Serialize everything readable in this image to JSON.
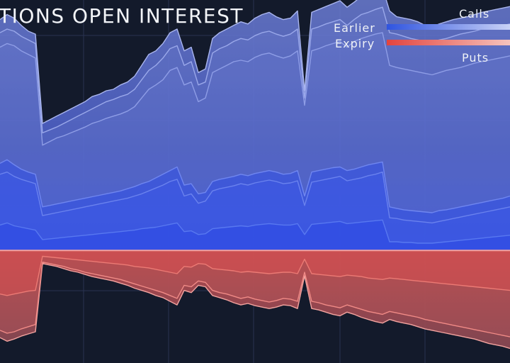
{
  "header": {
    "title": "TIONS OPEN INTEREST"
  },
  "legend": {
    "calls_label": "Calls",
    "puts_label": "Puts",
    "earlier_label": "Earlier",
    "expiry_label": "Expiry",
    "calls_gradient": [
      "#2f54e0",
      "#c9d2f6"
    ],
    "puts_gradient": [
      "#e2443f",
      "#f5c3bd"
    ]
  },
  "chart_data": {
    "type": "area",
    "title": "TIONS OPEN INTEREST",
    "xlabel": "",
    "ylabel": "",
    "grid": true,
    "legend_placement": "top-right",
    "x": [
      0,
      1,
      2,
      3,
      4,
      5,
      6,
      7,
      8,
      9,
      10,
      11,
      12,
      13,
      14,
      15,
      16,
      17,
      18,
      19,
      20,
      21,
      22,
      23,
      24,
      25,
      26,
      27,
      28,
      29,
      30,
      31,
      32,
      33,
      34,
      35,
      36,
      37,
      38,
      39,
      40,
      41,
      42,
      43,
      44,
      45,
      46,
      47,
      48,
      49,
      50,
      51,
      52,
      53,
      54,
      55,
      56,
      57,
      58,
      59,
      60,
      61,
      62,
      63,
      64,
      65,
      66,
      67,
      68,
      69,
      70,
      71,
      72
    ],
    "ylim": [
      -1.55,
      3.45
    ],
    "baseline": 0,
    "series_calls": [
      {
        "values": [
          3.18,
          3.25,
          3.2,
          3.1,
          3.02,
          2.98,
          1.75,
          1.8,
          1.85,
          1.9,
          1.95,
          2.0,
          2.05,
          2.12,
          2.15,
          2.2,
          2.22,
          2.28,
          2.32,
          2.4,
          2.55,
          2.7,
          2.75,
          2.85,
          3.0,
          3.05,
          2.75,
          2.8,
          2.45,
          2.5,
          2.92,
          3.0,
          3.05,
          3.1,
          3.15,
          3.12,
          3.2,
          3.25,
          3.28,
          3.22,
          3.18,
          3.2,
          3.3,
          2.2,
          3.28,
          3.32,
          3.36,
          3.4,
          3.44,
          3.35,
          3.42,
          3.5,
          3.55,
          3.6,
          3.62,
          3.3,
          3.22,
          3.2,
          3.18,
          3.15,
          3.1,
          3.08,
          3.12,
          3.15,
          3.18,
          3.2,
          3.22,
          3.25,
          3.28,
          3.3,
          3.32,
          3.34,
          3.36
        ]
      },
      {
        "values": [
          3.0,
          3.05,
          3.02,
          2.95,
          2.9,
          2.85,
          1.62,
          1.66,
          1.7,
          1.75,
          1.8,
          1.85,
          1.9,
          1.95,
          2.0,
          2.05,
          2.08,
          2.12,
          2.15,
          2.22,
          2.35,
          2.48,
          2.55,
          2.65,
          2.78,
          2.82,
          2.55,
          2.6,
          2.28,
          2.32,
          2.72,
          2.78,
          2.82,
          2.88,
          2.92,
          2.9,
          2.96,
          3.0,
          3.02,
          2.98,
          2.95,
          2.98,
          3.05,
          2.1,
          3.05,
          3.08,
          3.12,
          3.15,
          3.18,
          3.1,
          3.18,
          3.25,
          3.28,
          3.32,
          3.35,
          3.0,
          2.98,
          2.95,
          2.92,
          2.9,
          2.88,
          2.86,
          2.9,
          2.92,
          2.95,
          2.98,
          3.0,
          3.02,
          3.05,
          3.07,
          3.08,
          3.1,
          3.12
        ]
      },
      {
        "values": [
          2.8,
          2.85,
          2.82,
          2.75,
          2.7,
          2.65,
          1.45,
          1.5,
          1.55,
          1.58,
          1.62,
          1.66,
          1.7,
          1.75,
          1.78,
          1.82,
          1.85,
          1.88,
          1.92,
          1.98,
          2.1,
          2.22,
          2.28,
          2.35,
          2.48,
          2.52,
          2.28,
          2.32,
          2.05,
          2.1,
          2.45,
          2.5,
          2.55,
          2.6,
          2.62,
          2.6,
          2.66,
          2.7,
          2.72,
          2.68,
          2.65,
          2.68,
          2.75,
          2.0,
          2.75,
          2.78,
          2.82,
          2.85,
          2.88,
          2.8,
          2.88,
          2.92,
          2.95,
          2.98,
          3.0,
          2.55,
          2.52,
          2.5,
          2.48,
          2.46,
          2.44,
          2.42,
          2.45,
          2.48,
          2.5,
          2.52,
          2.55,
          2.58,
          2.6,
          2.62,
          2.64,
          2.66,
          2.68
        ]
      },
      {
        "values": [
          1.2,
          1.25,
          1.18,
          1.12,
          1.08,
          1.05,
          0.6,
          0.62,
          0.64,
          0.66,
          0.68,
          0.7,
          0.72,
          0.74,
          0.76,
          0.78,
          0.8,
          0.82,
          0.85,
          0.88,
          0.92,
          0.95,
          1.0,
          1.05,
          1.1,
          1.15,
          0.9,
          0.92,
          0.78,
          0.8,
          0.95,
          0.98,
          1.0,
          1.02,
          1.05,
          1.03,
          1.06,
          1.08,
          1.1,
          1.08,
          1.05,
          1.06,
          1.1,
          0.75,
          1.08,
          1.1,
          1.12,
          1.14,
          1.15,
          1.1,
          1.12,
          1.15,
          1.18,
          1.2,
          1.22,
          0.6,
          0.58,
          0.56,
          0.55,
          0.54,
          0.53,
          0.52,
          0.55,
          0.56,
          0.58,
          0.6,
          0.62,
          0.64,
          0.66,
          0.68,
          0.7,
          0.72,
          0.75
        ]
      },
      {
        "values": [
          1.05,
          1.08,
          1.02,
          0.98,
          0.95,
          0.92,
          0.48,
          0.5,
          0.52,
          0.54,
          0.56,
          0.58,
          0.6,
          0.62,
          0.64,
          0.66,
          0.68,
          0.7,
          0.72,
          0.75,
          0.78,
          0.82,
          0.86,
          0.9,
          0.95,
          0.98,
          0.75,
          0.78,
          0.65,
          0.68,
          0.82,
          0.85,
          0.87,
          0.89,
          0.92,
          0.9,
          0.93,
          0.95,
          0.97,
          0.95,
          0.92,
          0.93,
          0.96,
          0.62,
          0.94,
          0.96,
          0.98,
          1.0,
          1.02,
          0.96,
          0.98,
          1.0,
          1.03,
          1.05,
          1.08,
          0.45,
          0.44,
          0.42,
          0.41,
          0.4,
          0.39,
          0.38,
          0.4,
          0.42,
          0.44,
          0.46,
          0.48,
          0.5,
          0.52,
          0.54,
          0.56,
          0.58,
          0.6
        ]
      },
      {
        "values": [
          0.35,
          0.38,
          0.34,
          0.32,
          0.3,
          0.28,
          0.15,
          0.16,
          0.17,
          0.18,
          0.19,
          0.2,
          0.21,
          0.22,
          0.23,
          0.24,
          0.25,
          0.26,
          0.27,
          0.28,
          0.3,
          0.31,
          0.32,
          0.34,
          0.36,
          0.38,
          0.26,
          0.27,
          0.22,
          0.23,
          0.3,
          0.31,
          0.32,
          0.33,
          0.34,
          0.33,
          0.35,
          0.36,
          0.37,
          0.36,
          0.35,
          0.35,
          0.37,
          0.22,
          0.36,
          0.37,
          0.38,
          0.39,
          0.4,
          0.37,
          0.38,
          0.39,
          0.4,
          0.41,
          0.42,
          0.12,
          0.12,
          0.11,
          0.11,
          0.1,
          0.1,
          0.1,
          0.11,
          0.12,
          0.13,
          0.14,
          0.15,
          0.16,
          0.17,
          0.18,
          0.19,
          0.2,
          0.21
        ]
      }
    ],
    "series_puts": [
      {
        "values": [
          -1.2,
          -1.25,
          -1.22,
          -1.18,
          -1.15,
          -1.12,
          -0.18,
          -0.2,
          -0.22,
          -0.25,
          -0.28,
          -0.3,
          -0.33,
          -0.36,
          -0.38,
          -0.4,
          -0.42,
          -0.45,
          -0.48,
          -0.52,
          -0.55,
          -0.58,
          -0.62,
          -0.65,
          -0.7,
          -0.75,
          -0.55,
          -0.58,
          -0.48,
          -0.5,
          -0.62,
          -0.65,
          -0.68,
          -0.72,
          -0.75,
          -0.73,
          -0.76,
          -0.78,
          -0.8,
          -0.78,
          -0.75,
          -0.76,
          -0.8,
          -0.35,
          -0.8,
          -0.82,
          -0.85,
          -0.88,
          -0.9,
          -0.85,
          -0.88,
          -0.92,
          -0.95,
          -0.98,
          -1.0,
          -0.95,
          -0.98,
          -1.0,
          -1.02,
          -1.05,
          -1.08,
          -1.1,
          -1.12,
          -1.14,
          -1.16,
          -1.18,
          -1.2,
          -1.22,
          -1.25,
          -1.28,
          -1.3,
          -1.32,
          -1.35
        ]
      },
      {
        "values": [
          -1.1,
          -1.14,
          -1.12,
          -1.08,
          -1.05,
          -1.02,
          -0.16,
          -0.18,
          -0.2,
          -0.22,
          -0.25,
          -0.27,
          -0.3,
          -0.32,
          -0.34,
          -0.36,
          -0.38,
          -0.4,
          -0.43,
          -0.46,
          -0.49,
          -0.52,
          -0.55,
          -0.58,
          -0.62,
          -0.66,
          -0.48,
          -0.5,
          -0.42,
          -0.44,
          -0.55,
          -0.58,
          -0.6,
          -0.63,
          -0.66,
          -0.64,
          -0.67,
          -0.69,
          -0.71,
          -0.69,
          -0.66,
          -0.67,
          -0.7,
          -0.3,
          -0.7,
          -0.72,
          -0.75,
          -0.77,
          -0.79,
          -0.75,
          -0.78,
          -0.81,
          -0.84,
          -0.86,
          -0.88,
          -0.84,
          -0.86,
          -0.88,
          -0.9,
          -0.92,
          -0.95,
          -0.97,
          -0.99,
          -1.01,
          -1.03,
          -1.05,
          -1.07,
          -1.09,
          -1.11,
          -1.13,
          -1.15,
          -1.17,
          -1.19
        ]
      },
      {
        "values": [
          -0.6,
          -0.62,
          -0.6,
          -0.58,
          -0.56,
          -0.55,
          -0.08,
          -0.09,
          -0.1,
          -0.11,
          -0.12,
          -0.13,
          -0.14,
          -0.15,
          -0.16,
          -0.17,
          -0.18,
          -0.19,
          -0.2,
          -0.22,
          -0.23,
          -0.24,
          -0.26,
          -0.28,
          -0.3,
          -0.32,
          -0.22,
          -0.23,
          -0.18,
          -0.19,
          -0.25,
          -0.26,
          -0.27,
          -0.28,
          -0.3,
          -0.29,
          -0.3,
          -0.31,
          -0.32,
          -0.31,
          -0.3,
          -0.3,
          -0.32,
          -0.12,
          -0.32,
          -0.33,
          -0.34,
          -0.35,
          -0.36,
          -0.34,
          -0.35,
          -0.36,
          -0.38,
          -0.39,
          -0.4,
          -0.38,
          -0.39,
          -0.4,
          -0.41,
          -0.42,
          -0.43,
          -0.44,
          -0.45,
          -0.46,
          -0.47,
          -0.48,
          -0.49,
          -0.5,
          -0.51,
          -0.52,
          -0.53,
          -0.54,
          -0.55
        ]
      }
    ]
  }
}
